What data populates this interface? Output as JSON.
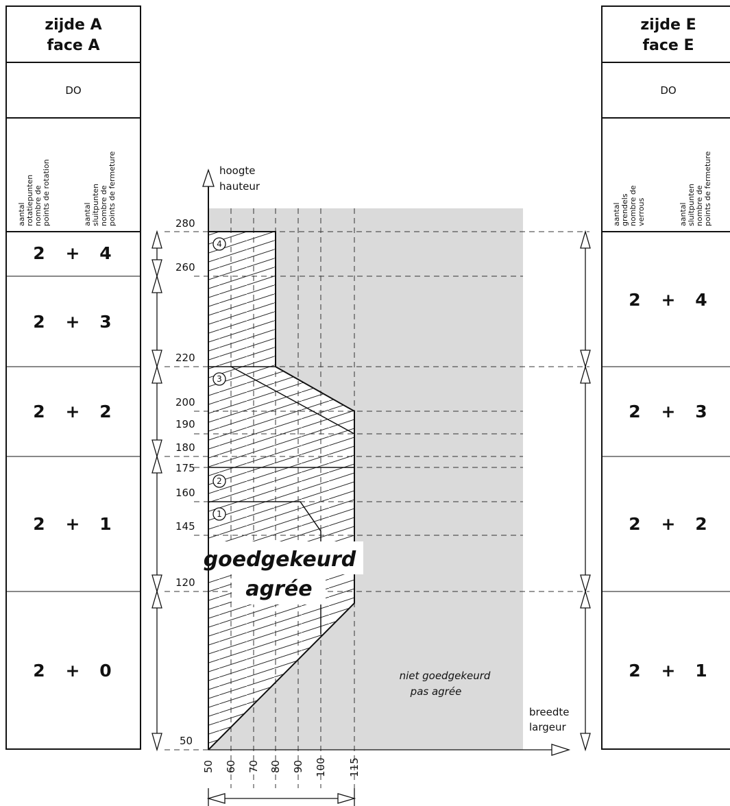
{
  "left_table": {
    "title_line1": "zijde A",
    "title_line2": "face A",
    "code": "DO",
    "header_col1": [
      "aantal",
      "rotatiepunten",
      "nombre de",
      "points de rotation"
    ],
    "header_col2": [
      "aantal",
      "sluitpunten",
      "nombre de",
      "points de fermeture"
    ],
    "rows": [
      {
        "a": "2",
        "op": "+",
        "b": "4"
      },
      {
        "a": "2",
        "op": "+",
        "b": "3"
      },
      {
        "a": "2",
        "op": "+",
        "b": "2"
      },
      {
        "a": "2",
        "op": "+",
        "b": "1"
      },
      {
        "a": "2",
        "op": "+",
        "b": "0"
      }
    ]
  },
  "right_table": {
    "title_line1": "zijde E",
    "title_line2": "face E",
    "code": "DO",
    "header_col1": [
      "aantal",
      "grendels",
      "nombre de",
      "verrous"
    ],
    "header_col2": [
      "aantal",
      "sluitpunten",
      "nombre de",
      "points de fermeture"
    ],
    "rows": [
      {
        "a": "2",
        "op": "+",
        "b": "4"
      },
      {
        "a": "2",
        "op": "+",
        "b": "3"
      },
      {
        "a": "2",
        "op": "+",
        "b": "2"
      },
      {
        "a": "2",
        "op": "+",
        "b": "1"
      }
    ]
  },
  "diagram": {
    "y_axis_label_1": "hoogte",
    "y_axis_label_2": "hauteur",
    "x_axis_label_1": "breedte",
    "x_axis_label_2": "largeur",
    "y_ticks": [
      "280",
      "260",
      "220",
      "200",
      "190",
      "180",
      "175",
      "160",
      "145",
      "120",
      "50"
    ],
    "x_ticks": [
      "50",
      "60",
      "70",
      "80",
      "90",
      "100",
      "115"
    ],
    "approved_1": "goedgekeurd",
    "approved_2": "agrée",
    "not_approved_1": "niet goedgekeurd",
    "not_approved_2": "pas agrée",
    "zone_markers": [
      "1",
      "2",
      "3",
      "4"
    ]
  }
}
